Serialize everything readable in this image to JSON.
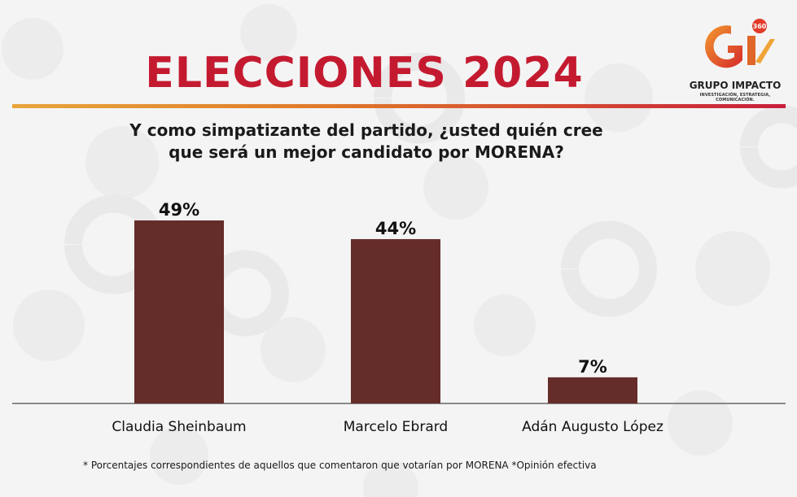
{
  "header": {
    "title": "ELECCIONES 2024",
    "question_line1": "Y como simpatizante del partido, ¿usted quién cree",
    "question_line2": "que será un mejor candidato por MORENA?"
  },
  "logo": {
    "badge": "360",
    "name": "GRUPO IMPACTO",
    "tagline": "INVESTIGACIÓN, ESTRATEGIA, COMUNICACIÓN."
  },
  "footnote": {
    "text": "*  Porcentajes correspondientes de aquellos que comentaron que votarían por MORENA    *Opinión efectiva"
  },
  "colors": {
    "bar": "#652d2a",
    "title": "#c41a30",
    "rule_start": "#e8a53a",
    "rule_end": "#c81e3a"
  },
  "chart_data": {
    "type": "bar",
    "title": "",
    "xlabel": "",
    "ylabel": "",
    "categories": [
      "Claudia Sheinbaum",
      "Marcelo Ebrard",
      "Adán Augusto López"
    ],
    "values": [
      49,
      44,
      7
    ],
    "data_labels": [
      "49%",
      "44%",
      "7%"
    ],
    "unit": "%",
    "ylim": [
      0,
      50
    ],
    "grid": false,
    "legend": "none"
  }
}
